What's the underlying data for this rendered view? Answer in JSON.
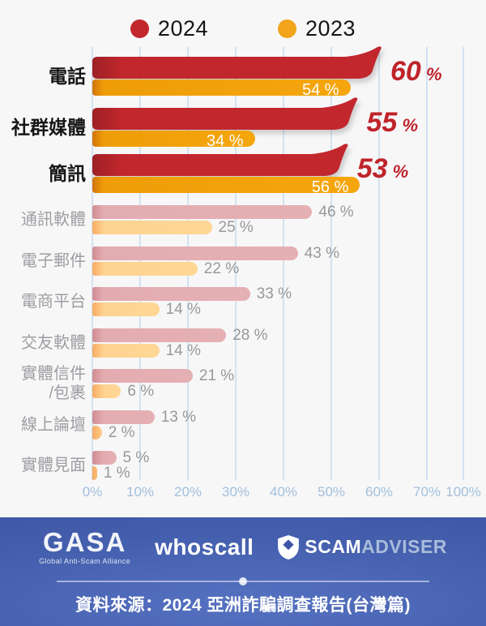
{
  "legend": {
    "item2024": "2024",
    "item2023": "2023"
  },
  "chart_data": {
    "type": "bar",
    "orientation": "horizontal",
    "grouped": true,
    "series_names": [
      "2024",
      "2023"
    ],
    "categories": [
      "電話",
      "社群媒體",
      "簡訊",
      "通訊軟體",
      "電子郵件",
      "電商平台",
      "交友軟體",
      "實體信件/包裹",
      "線上論壇",
      "實體見面"
    ],
    "series": [
      {
        "name": "2024",
        "values": [
          60,
          55,
          53,
          46,
          43,
          33,
          28,
          21,
          13,
          5
        ]
      },
      {
        "name": "2023",
        "values": [
          54,
          34,
          56,
          25,
          22,
          14,
          14,
          6,
          2,
          1
        ]
      }
    ],
    "rows": [
      {
        "label": "電話",
        "v2024": 60,
        "v2023": 54,
        "d2024": "60 %",
        "d2023": "54 %",
        "highlight": true
      },
      {
        "label": "社群媒體",
        "v2024": 55,
        "v2023": 34,
        "d2024": "55 %",
        "d2023": "34 %",
        "highlight": true
      },
      {
        "label": "簡訊",
        "v2024": 53,
        "v2023": 56,
        "d2024": "53 %",
        "d2023": "56 %",
        "highlight": true
      },
      {
        "label": "通訊軟體",
        "v2024": 46,
        "v2023": 25,
        "d2024": "46 %",
        "d2023": "25 %",
        "highlight": false
      },
      {
        "label": "電子郵件",
        "v2024": 43,
        "v2023": 22,
        "d2024": "43 %",
        "d2023": "22 %",
        "highlight": false
      },
      {
        "label": "電商平台",
        "v2024": 33,
        "v2023": 14,
        "d2024": "33 %",
        "d2023": "14 %",
        "highlight": false
      },
      {
        "label": "交友軟體",
        "v2024": 28,
        "v2023": 14,
        "d2024": "28 %",
        "d2023": "14 %",
        "highlight": false
      },
      {
        "label": "實體信件\n/包裹",
        "v2024": 21,
        "v2023": 6,
        "d2024": "21 %",
        "d2023": "6 %",
        "highlight": false
      },
      {
        "label": "線上論壇",
        "v2024": 13,
        "v2023": 2,
        "d2024": "13 %",
        "d2023": "2 %",
        "highlight": false
      },
      {
        "label": "實體見面",
        "v2024": 5,
        "v2023": 1,
        "d2024": "5 %",
        "d2023": "1 %",
        "highlight": false
      }
    ],
    "x_ticks": [
      "0%",
      "10%",
      "20%",
      "30%",
      "40%",
      "50%",
      "60%",
      "70%",
      "100%"
    ],
    "x_axis_break_after": "70%",
    "grid": true,
    "legend_position": "top",
    "colors": {
      "s2024": "#c2272d",
      "s2024_dark": "#9c2024",
      "s2023": "#f2a41b",
      "s2023_dark": "#d2740a",
      "s2024_muted": "#e5b0b4",
      "s2023_muted": "#ffd795",
      "value_label_2024_hl": "#bf232a",
      "value_label_muted": "#98989a",
      "gridline": "#d3e2f1",
      "tick_label": "#a2bfdd"
    }
  },
  "footer": {
    "gasa_name": "GASA",
    "gasa_subtitle": "Global Anti-Scam Alliance",
    "whoscall": "whoscall",
    "scamadviser_scam": "SCAM",
    "scamadviser_adviser": "ADVISER",
    "source": "資料來源：2024 亞洲詐騙調查報告(台灣篇)"
  }
}
